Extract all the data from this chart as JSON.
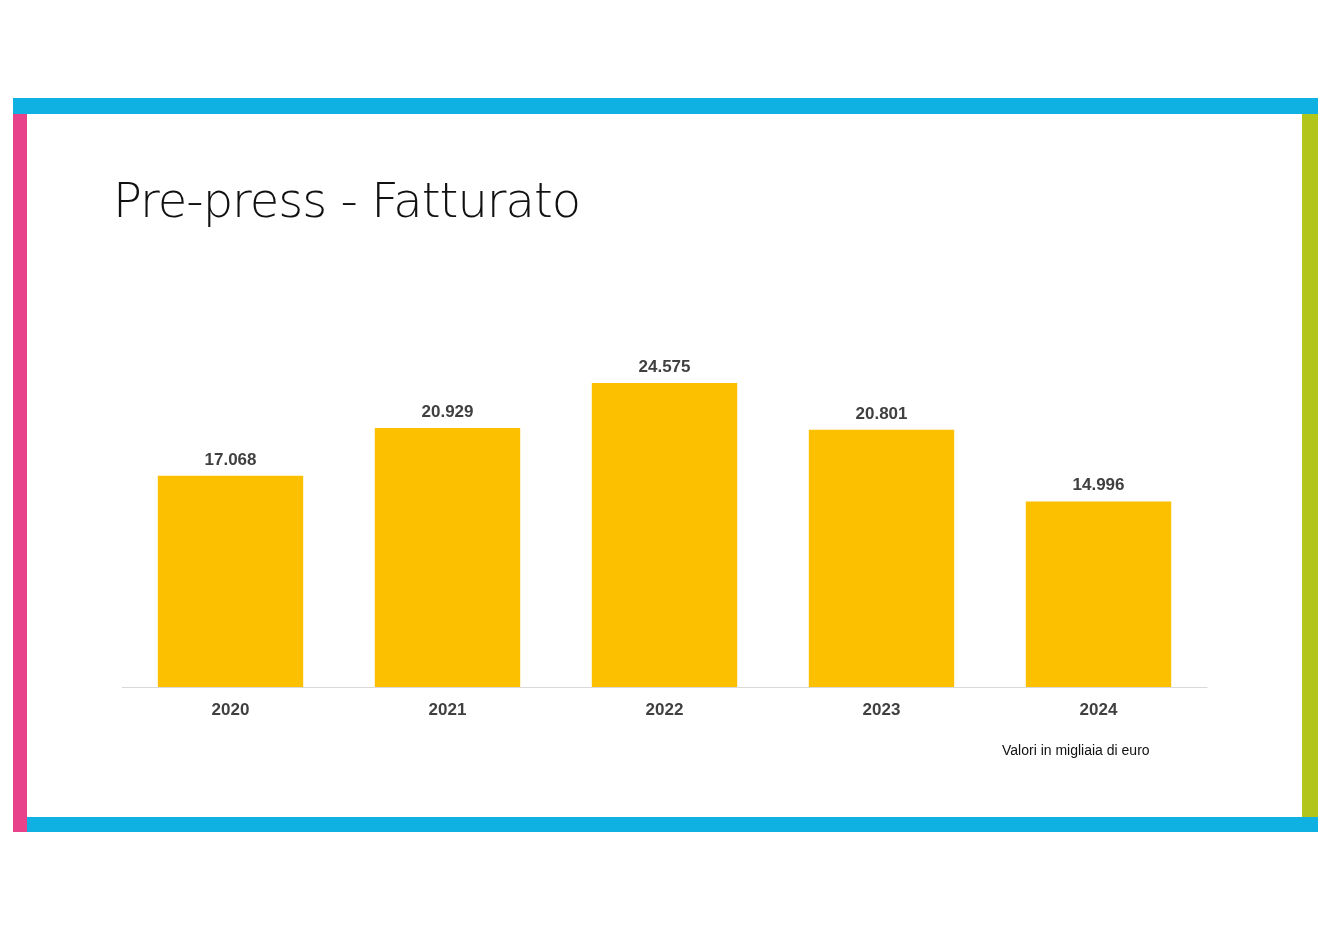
{
  "chart_data": {
    "type": "bar",
    "title": "Pre-press - Fatturato",
    "categories": [
      "2020",
      "2021",
      "2022",
      "2023",
      "2024"
    ],
    "values": [
      17068,
      20929,
      24575,
      20801,
      14996
    ],
    "value_labels": [
      "17.068",
      "20.929",
      "24.575",
      "20.801",
      "14.996"
    ],
    "color": "#fdc000",
    "annotations": [
      "Valori in migliaia di euro"
    ],
    "grid": false
  }
}
